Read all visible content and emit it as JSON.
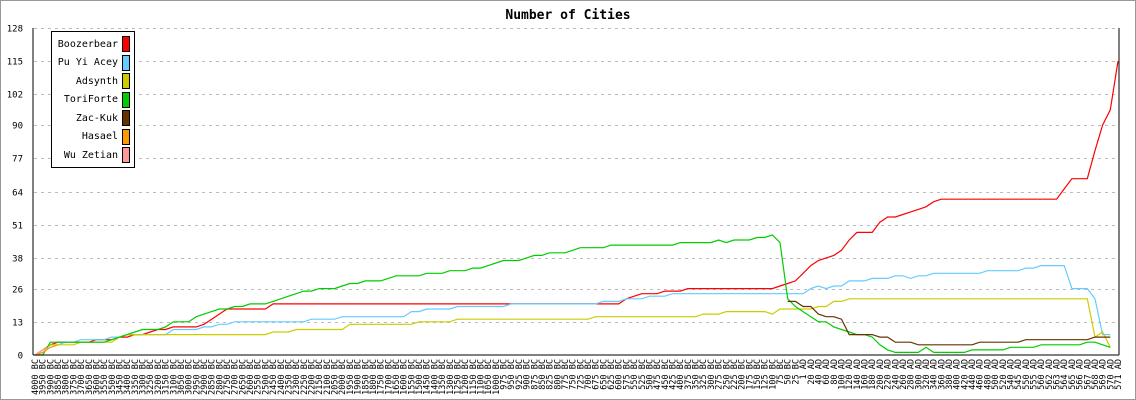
{
  "chart_data": {
    "type": "line",
    "title": "Number of Cities",
    "xlabel": "",
    "ylabel": "",
    "ylim": [
      0,
      128
    ],
    "yticks": [
      0,
      13,
      26,
      38,
      51,
      64,
      77,
      90,
      102,
      115,
      128
    ],
    "grid": "horizontal dashed",
    "legend_position": "top-left",
    "categories": [
      "4000 BC",
      "3950 BC",
      "3900 BC",
      "3850 BC",
      "3800 BC",
      "3750 BC",
      "3700 BC",
      "3650 BC",
      "3600 BC",
      "3550 BC",
      "3500 BC",
      "3450 BC",
      "3400 BC",
      "3350 BC",
      "3300 BC",
      "3250 BC",
      "3200 BC",
      "3150 BC",
      "3100 BC",
      "3050 BC",
      "3000 BC",
      "2950 BC",
      "2900 BC",
      "2850 BC",
      "2800 BC",
      "2750 BC",
      "2700 BC",
      "2650 BC",
      "2600 BC",
      "2550 BC",
      "2500 BC",
      "2450 BC",
      "2400 BC",
      "2350 BC",
      "2300 BC",
      "2250 BC",
      "2200 BC",
      "2150 BC",
      "2100 BC",
      "2050 BC",
      "2000 BC",
      "1950 BC",
      "1900 BC",
      "1850 BC",
      "1800 BC",
      "1750 BC",
      "1700 BC",
      "1650 BC",
      "1600 BC",
      "1550 BC",
      "1500 BC",
      "1450 BC",
      "1400 BC",
      "1350 BC",
      "1300 BC",
      "1250 BC",
      "1200 BC",
      "1150 BC",
      "1100 BC",
      "1050 BC",
      "1000 BC",
      "975 BC",
      "950 BC",
      "925 BC",
      "900 BC",
      "875 BC",
      "850 BC",
      "825 BC",
      "800 BC",
      "775 BC",
      "750 BC",
      "725 BC",
      "700 BC",
      "675 BC",
      "650 BC",
      "625 BC",
      "600 BC",
      "575 BC",
      "550 BC",
      "525 BC",
      "500 BC",
      "475 BC",
      "450 BC",
      "425 BC",
      "400 BC",
      "375 BC",
      "350 BC",
      "325 BC",
      "300 BC",
      "275 BC",
      "250 BC",
      "225 BC",
      "200 BC",
      "175 BC",
      "150 BC",
      "125 BC",
      "100 BC",
      "75 BC",
      "50 BC",
      "25 BC",
      "1 AD",
      "20 AD",
      "40 AD",
      "60 AD",
      "80 AD",
      "100 AD",
      "120 AD",
      "140 AD",
      "160 AD",
      "180 AD",
      "200 AD",
      "220 AD",
      "240 AD",
      "260 AD",
      "280 AD",
      "300 AD",
      "320 AD",
      "340 AD",
      "360 AD",
      "380 AD",
      "400 AD",
      "420 AD",
      "440 AD",
      "460 AD",
      "480 AD",
      "500 AD",
      "520 AD",
      "540 AD",
      "545 AD",
      "550 AD",
      "555 AD",
      "560 AD",
      "562 AD",
      "563 AD",
      "564 AD",
      "565 AD",
      "566 AD",
      "567 AD",
      "568 AD",
      "569 AD",
      "570 AD",
      "571 AD"
    ],
    "series": [
      {
        "name": "Boozerbear",
        "color": "#ff0000",
        "values": [
          0,
          2,
          4,
          5,
          5,
          5,
          5,
          5,
          6,
          6,
          6,
          7,
          7,
          8,
          8,
          9,
          10,
          10,
          11,
          11,
          11,
          11,
          12,
          14,
          16,
          18,
          18,
          18,
          18,
          18,
          18,
          20,
          20,
          20,
          20,
          20,
          20,
          20,
          20,
          20,
          20,
          20,
          20,
          20,
          20,
          20,
          20,
          20,
          20,
          20,
          20,
          20,
          20,
          20,
          20,
          20,
          20,
          20,
          20,
          20,
          20,
          20,
          20,
          20,
          20,
          20,
          20,
          20,
          20,
          20,
          20,
          20,
          20,
          20,
          20,
          20,
          20,
          22,
          23,
          24,
          24,
          24,
          25,
          25,
          25,
          26,
          26,
          26,
          26,
          26,
          26,
          26,
          26,
          26,
          26,
          26,
          26,
          27,
          28,
          29,
          32,
          35,
          37,
          38,
          39,
          41,
          45,
          48,
          48,
          48,
          52,
          54,
          54,
          55,
          56,
          57,
          58,
          60,
          61,
          61,
          61,
          61,
          61,
          61,
          61,
          61,
          61,
          61,
          61,
          61,
          61,
          61,
          61,
          61,
          65,
          69,
          69,
          69,
          80,
          90,
          96,
          115
        ]
      },
      {
        "name": "Pu Yi Acey",
        "color": "#66ccff",
        "values": [
          0,
          1,
          3,
          4,
          5,
          5,
          6,
          6,
          6,
          6,
          7,
          7,
          8,
          8,
          8,
          8,
          8,
          8,
          10,
          10,
          10,
          10,
          11,
          11,
          12,
          12,
          13,
          13,
          13,
          13,
          13,
          13,
          13,
          13,
          13,
          13,
          14,
          14,
          14,
          14,
          15,
          15,
          15,
          15,
          15,
          15,
          15,
          15,
          15,
          17,
          17,
          18,
          18,
          18,
          18,
          19,
          19,
          19,
          19,
          19,
          19,
          19,
          20,
          20,
          20,
          20,
          20,
          20,
          20,
          20,
          20,
          20,
          20,
          20,
          21,
          21,
          21,
          22,
          22,
          22,
          23,
          23,
          23,
          24,
          24,
          24,
          24,
          24,
          24,
          24,
          24,
          24,
          24,
          24,
          24,
          24,
          24,
          24,
          24,
          24,
          24,
          26,
          27,
          26,
          27,
          27,
          29,
          29,
          29,
          30,
          30,
          30,
          31,
          31,
          30,
          31,
          31,
          32,
          32,
          32,
          32,
          32,
          32,
          32,
          33,
          33,
          33,
          33,
          33,
          34,
          34,
          35,
          35,
          35,
          35,
          26,
          26,
          26,
          22,
          8,
          8,
          null
        ]
      },
      {
        "name": "Adsynth",
        "color": "#cccc00",
        "values": [
          0,
          2,
          4,
          4,
          4,
          4,
          5,
          5,
          5,
          5,
          5,
          7,
          8,
          8,
          8,
          8,
          8,
          8,
          8,
          8,
          8,
          8,
          8,
          8,
          8,
          8,
          8,
          8,
          8,
          8,
          8,
          9,
          9,
          9,
          10,
          10,
          10,
          10,
          10,
          10,
          10,
          12,
          12,
          12,
          12,
          12,
          12,
          12,
          12,
          12,
          13,
          13,
          13,
          13,
          13,
          14,
          14,
          14,
          14,
          14,
          14,
          14,
          14,
          14,
          14,
          14,
          14,
          14,
          14,
          14,
          14,
          14,
          14,
          15,
          15,
          15,
          15,
          15,
          15,
          15,
          15,
          15,
          15,
          15,
          15,
          15,
          15,
          16,
          16,
          16,
          17,
          17,
          17,
          17,
          17,
          17,
          16,
          18,
          18,
          18,
          18,
          18,
          19,
          19,
          21,
          21,
          22,
          22,
          22,
          22,
          22,
          22,
          22,
          22,
          22,
          22,
          22,
          22,
          22,
          22,
          22,
          22,
          22,
          22,
          22,
          22,
          22,
          22,
          22,
          22,
          22,
          22,
          22,
          22,
          22,
          22,
          22,
          22,
          7,
          9,
          3,
          null
        ]
      },
      {
        "name": "ToriForte",
        "color": "#00cc00",
        "values": [
          0,
          0,
          5,
          5,
          5,
          5,
          5,
          5,
          5,
          5,
          6,
          7,
          8,
          9,
          10,
          10,
          10,
          11,
          13,
          13,
          13,
          15,
          16,
          17,
          18,
          18,
          19,
          19,
          20,
          20,
          20,
          21,
          22,
          23,
          24,
          25,
          25,
          26,
          26,
          26,
          27,
          28,
          28,
          29,
          29,
          29,
          30,
          31,
          31,
          31,
          31,
          32,
          32,
          32,
          33,
          33,
          33,
          34,
          34,
          35,
          36,
          37,
          37,
          37,
          38,
          39,
          39,
          40,
          40,
          40,
          41,
          42,
          42,
          42,
          42,
          43,
          43,
          43,
          43,
          43,
          43,
          43,
          43,
          43,
          44,
          44,
          44,
          44,
          44,
          45,
          44,
          45,
          45,
          45,
          46,
          46,
          47,
          44,
          22,
          19,
          17,
          15,
          13,
          13,
          11,
          10,
          9,
          8,
          8,
          7,
          4,
          2,
          1,
          1,
          1,
          1,
          3,
          1,
          1,
          1,
          1,
          1,
          2,
          2,
          2,
          2,
          2,
          3,
          3,
          3,
          3,
          4,
          4,
          4,
          4,
          4,
          4,
          5,
          5,
          4,
          3,
          null
        ]
      },
      {
        "name": "Zac-Kuk",
        "color": "#663300",
        "points": [
          [
            "50 BC",
            21
          ],
          [
            "25 BC",
            21
          ],
          [
            "1 AD",
            19
          ],
          [
            "20 AD",
            19
          ],
          [
            "40 AD",
            16
          ],
          [
            "60 AD",
            15
          ],
          [
            "80 AD",
            15
          ],
          [
            "100 AD",
            14
          ],
          [
            "120 AD",
            8
          ],
          [
            "140 AD",
            8
          ],
          [
            "160 AD",
            8
          ],
          [
            "180 AD",
            8
          ],
          [
            "200 AD",
            7
          ],
          [
            "220 AD",
            7
          ],
          [
            "240 AD",
            5
          ],
          [
            "260 AD",
            5
          ],
          [
            "280 AD",
            5
          ],
          [
            "300 AD",
            4
          ],
          [
            "320 AD",
            4
          ],
          [
            "340 AD",
            4
          ],
          [
            "360 AD",
            4
          ],
          [
            "380 AD",
            4
          ],
          [
            "400 AD",
            4
          ],
          [
            "420 AD",
            4
          ],
          [
            "440 AD",
            4
          ],
          [
            "460 AD",
            5
          ],
          [
            "480 AD",
            5
          ],
          [
            "500 AD",
            5
          ],
          [
            "520 AD",
            5
          ],
          [
            "540 AD",
            5
          ],
          [
            "545 AD",
            5
          ],
          [
            "550 AD",
            6
          ],
          [
            "555 AD",
            6
          ],
          [
            "560 AD",
            6
          ],
          [
            "562 AD",
            6
          ],
          [
            "563 AD",
            6
          ],
          [
            "564 AD",
            6
          ],
          [
            "565 AD",
            6
          ],
          [
            "566 AD",
            6
          ],
          [
            "567 AD",
            6
          ],
          [
            "568 AD",
            7
          ],
          [
            "569 AD",
            7
          ],
          [
            "570 AD",
            7
          ]
        ]
      },
      {
        "name": "Hasael",
        "color": "#ff9900",
        "points": [
          [
            "4000 BC",
            0
          ],
          [
            "3950 BC",
            1
          ],
          [
            "3900 BC",
            3
          ],
          [
            "3850 BC",
            4
          ]
        ]
      },
      {
        "name": "Wu Zetian",
        "color": "#ff9999",
        "points": [
          [
            "4000 BC",
            0
          ],
          [
            "3950 BC",
            2
          ],
          [
            "3900 BC",
            3
          ]
        ]
      }
    ]
  }
}
